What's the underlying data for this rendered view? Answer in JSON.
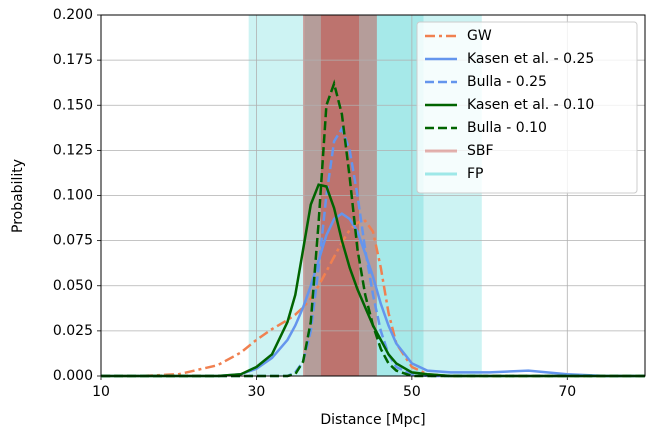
{
  "chart_data": {
    "type": "line",
    "xlabel": "Distance [Mpc]",
    "ylabel": "Probability",
    "x": [
      10,
      15,
      20,
      25,
      28,
      30,
      32,
      34,
      35,
      36,
      37,
      38,
      39,
      40,
      41,
      42,
      43,
      44,
      45,
      46,
      47,
      48,
      50,
      52,
      55,
      60,
      65,
      70,
      75,
      80
    ],
    "series": [
      {
        "name": "GW",
        "color": "#f08050",
        "style": "dash-dot",
        "values": [
          0,
          0,
          0.001,
          0.006,
          0.013,
          0.02,
          0.026,
          0.031,
          0.034,
          0.038,
          0.043,
          0.05,
          0.058,
          0.066,
          0.074,
          0.081,
          0.085,
          0.086,
          0.08,
          0.06,
          0.035,
          0.018,
          0.005,
          0.001,
          0,
          0,
          0,
          0,
          0,
          0
        ]
      },
      {
        "name": "Kasen et al. - 0.25",
        "color": "#6495ed",
        "style": "solid",
        "values": [
          0,
          0,
          0,
          0,
          0.001,
          0.004,
          0.01,
          0.02,
          0.028,
          0.038,
          0.05,
          0.064,
          0.078,
          0.087,
          0.09,
          0.087,
          0.08,
          0.068,
          0.055,
          0.04,
          0.028,
          0.018,
          0.007,
          0.003,
          0.002,
          0.002,
          0.003,
          0.001,
          0,
          0
        ]
      },
      {
        "name": "Bulla - 0.25",
        "color": "#6495ed",
        "style": "dashed",
        "values": [
          0,
          0,
          0,
          0,
          0,
          0,
          0,
          0,
          0.002,
          0.008,
          0.025,
          0.06,
          0.1,
          0.13,
          0.137,
          0.125,
          0.1,
          0.07,
          0.045,
          0.025,
          0.012,
          0.005,
          0.001,
          0,
          0,
          0,
          0,
          0,
          0,
          0
        ]
      },
      {
        "name": "Kasen et al. - 0.10",
        "color": "#006400",
        "style": "solid",
        "values": [
          0,
          0,
          0,
          0,
          0.001,
          0.005,
          0.012,
          0.03,
          0.045,
          0.07,
          0.095,
          0.106,
          0.105,
          0.093,
          0.075,
          0.06,
          0.048,
          0.038,
          0.028,
          0.02,
          0.012,
          0.007,
          0.002,
          0.001,
          0,
          0,
          0,
          0,
          0,
          0
        ]
      },
      {
        "name": "Bulla - 0.10",
        "color": "#006400",
        "style": "dashed",
        "values": [
          0,
          0,
          0,
          0,
          0,
          0,
          0,
          0,
          0.001,
          0.008,
          0.03,
          0.085,
          0.15,
          0.162,
          0.145,
          0.11,
          0.07,
          0.045,
          0.028,
          0.015,
          0.007,
          0.003,
          0,
          0,
          0,
          0,
          0,
          0,
          0,
          0
        ]
      }
    ],
    "bands": [
      {
        "name": "FP",
        "color": "#1cc7c9",
        "ranges": [
          [
            29,
            59
          ],
          [
            36.2,
            51.5
          ]
        ]
      },
      {
        "name": "SBF",
        "color": "#c8403a",
        "ranges": [
          [
            36,
            45.5
          ],
          [
            38.3,
            43.2
          ]
        ]
      }
    ],
    "xlim": [
      10,
      80
    ],
    "ylim": [
      0,
      0.2
    ],
    "xticks": [
      10,
      30,
      50,
      70
    ],
    "yticks": [
      {
        "value": 0,
        "label": "0.000"
      },
      {
        "value": 0.025,
        "label": "0.025"
      },
      {
        "value": 0.05,
        "label": "0.050"
      },
      {
        "value": 0.075,
        "label": "0.075"
      },
      {
        "value": 0.1,
        "label": "0.100"
      },
      {
        "value": 0.125,
        "label": "0.125"
      },
      {
        "value": 0.15,
        "label": "0.150"
      },
      {
        "value": 0.175,
        "label": "0.175"
      },
      {
        "value": 0.2,
        "label": "0.200"
      }
    ],
    "grid": true,
    "legend": "upper right"
  }
}
